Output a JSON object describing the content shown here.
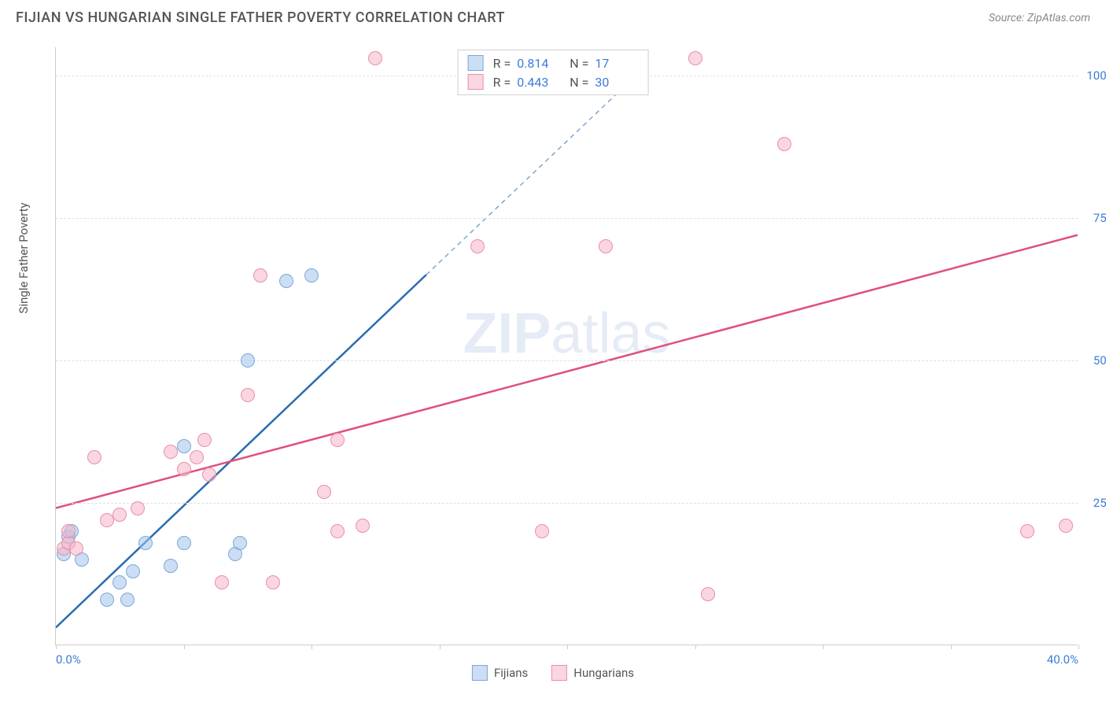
{
  "header": {
    "title": "FIJIAN VS HUNGARIAN SINGLE FATHER POVERTY CORRELATION CHART",
    "source": "Source: ZipAtlas.com"
  },
  "chart": {
    "type": "scatter",
    "y_axis_label": "Single Father Poverty",
    "watermark_bold": "ZIP",
    "watermark_light": "atlas",
    "xlim": [
      0,
      40
    ],
    "ylim": [
      0,
      105
    ],
    "x_ticks": [
      0,
      5,
      10,
      15,
      20,
      25,
      30,
      35,
      40
    ],
    "x_tick_labels": {
      "0": "0.0%",
      "40": "40.0%"
    },
    "y_gridlines": [
      25,
      50,
      75,
      100
    ],
    "y_tick_labels": [
      "25.0%",
      "50.0%",
      "75.0%",
      "100.0%"
    ],
    "background_color": "#ffffff",
    "grid_color": "#e0e0e0",
    "axis_color": "#cccccc",
    "tick_label_color": "#3b7dd8",
    "point_radius": 9,
    "series": [
      {
        "name": "Fijians",
        "fill": "rgba(160, 195, 235, 0.55)",
        "stroke": "#7ba8da",
        "trend_color": "#2b6cb0",
        "trend_width": 2.5,
        "trend": {
          "x1": 0,
          "y1": 3,
          "x2": 14.5,
          "y2": 65,
          "dash_x2": 22,
          "dash_y2": 97
        },
        "R": "0.814",
        "N": "17",
        "points": [
          [
            0.3,
            16
          ],
          [
            0.5,
            19
          ],
          [
            0.6,
            20
          ],
          [
            1.0,
            15
          ],
          [
            2.0,
            8
          ],
          [
            2.5,
            11
          ],
          [
            2.8,
            8
          ],
          [
            3.5,
            18
          ],
          [
            3.0,
            13
          ],
          [
            4.5,
            14
          ],
          [
            5.0,
            35
          ],
          [
            5.0,
            18
          ],
          [
            7.0,
            16
          ],
          [
            7.2,
            18
          ],
          [
            7.5,
            50
          ],
          [
            9.0,
            64
          ],
          [
            10.0,
            65
          ]
        ]
      },
      {
        "name": "Hungarians",
        "fill": "rgba(245, 180, 200, 0.55)",
        "stroke": "#e98fa8",
        "trend_color": "#e04f7a",
        "trend_width": 2.5,
        "trend": {
          "x1": 0,
          "y1": 24,
          "x2": 40,
          "y2": 72
        },
        "R": "0.443",
        "N": "30",
        "points": [
          [
            0.3,
            17
          ],
          [
            0.5,
            18
          ],
          [
            0.5,
            20
          ],
          [
            0.8,
            17
          ],
          [
            1.5,
            33
          ],
          [
            2.0,
            22
          ],
          [
            2.5,
            23
          ],
          [
            3.2,
            24
          ],
          [
            4.5,
            34
          ],
          [
            5.0,
            31
          ],
          [
            5.5,
            33
          ],
          [
            5.8,
            36
          ],
          [
            6.0,
            30
          ],
          [
            6.5,
            11
          ],
          [
            7.5,
            44
          ],
          [
            8.0,
            65
          ],
          [
            8.5,
            11
          ],
          [
            10.5,
            27
          ],
          [
            11.0,
            36
          ],
          [
            11.0,
            20
          ],
          [
            12.0,
            21
          ],
          [
            12.5,
            103
          ],
          [
            16.5,
            70
          ],
          [
            19.0,
            20
          ],
          [
            21.5,
            70
          ],
          [
            25.0,
            103
          ],
          [
            25.5,
            9
          ],
          [
            28.5,
            88
          ],
          [
            38.0,
            20
          ],
          [
            39.5,
            21
          ]
        ]
      }
    ],
    "correlation_legend": {
      "r_label": "R  =",
      "n_label": "N  ="
    }
  }
}
